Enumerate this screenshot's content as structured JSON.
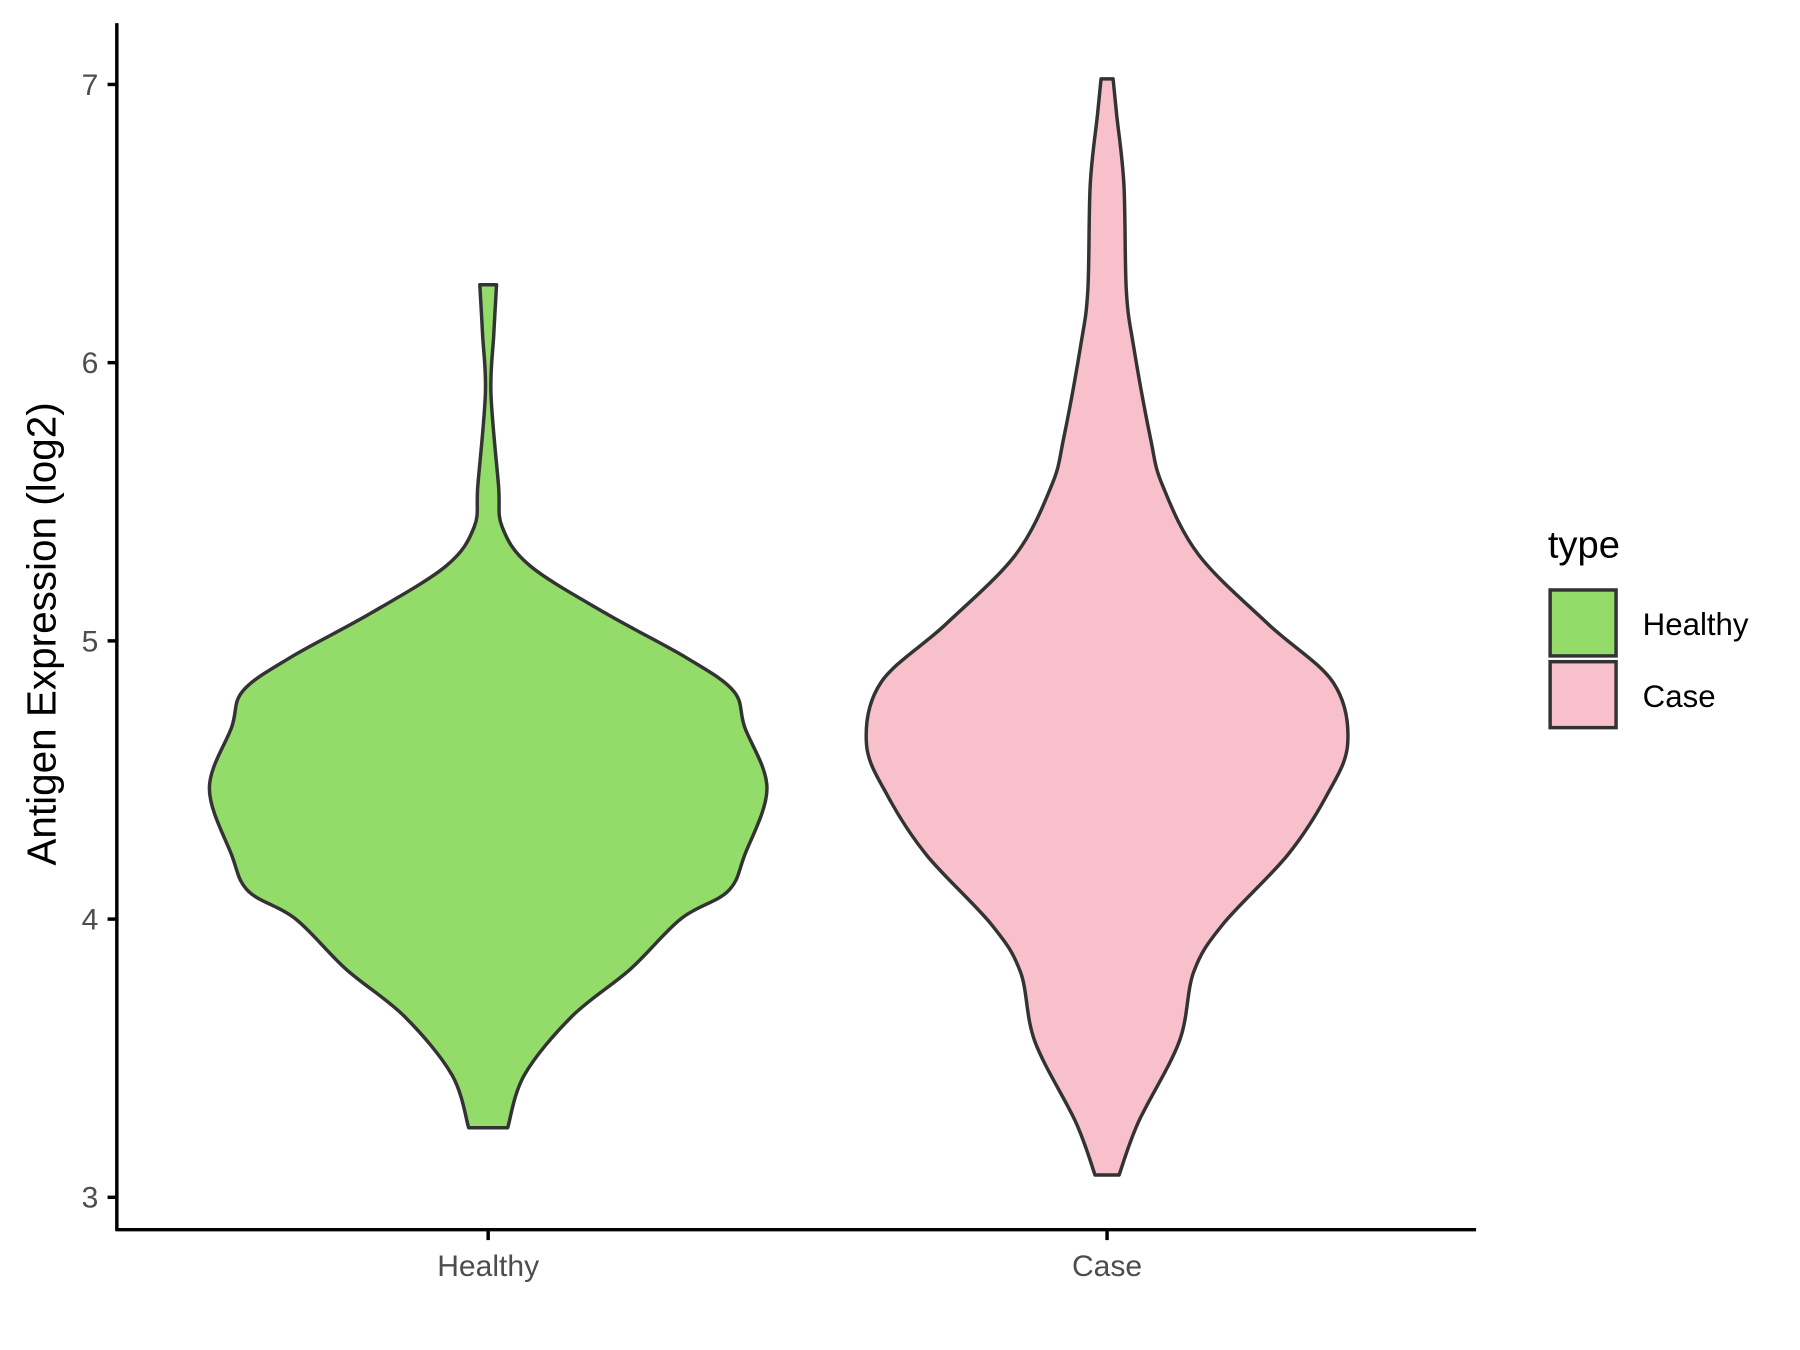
{
  "chart_data": {
    "type": "violin",
    "title": "",
    "xlabel": "",
    "ylabel": "Antigen Expression (log2)",
    "ylim": [
      2.88,
      7.22
    ],
    "yticks": [
      3,
      4,
      5,
      6,
      7
    ],
    "categories": [
      "Healthy",
      "Case"
    ],
    "grid": false,
    "legend": {
      "title": "type",
      "placement": "right",
      "entries": [
        {
          "label": "Healthy",
          "color": "#93DC6A"
        },
        {
          "label": "Case",
          "color": "#F8C0CB"
        }
      ]
    },
    "outline_color": "#333333",
    "violins": [
      {
        "category": "Healthy",
        "color": "#93DC6A",
        "range": [
          3.25,
          6.28
        ],
        "density_profile_note_units": "y in log2 expression, relative density 0-1",
        "profile": [
          [
            3.25,
            0.07
          ],
          [
            3.44,
            0.13
          ],
          [
            3.65,
            0.3
          ],
          [
            3.82,
            0.51
          ],
          [
            4.0,
            0.69
          ],
          [
            4.1,
            0.86
          ],
          [
            4.23,
            0.92
          ],
          [
            4.47,
            1.0
          ],
          [
            4.69,
            0.92
          ],
          [
            4.82,
            0.88
          ],
          [
            4.94,
            0.71
          ],
          [
            5.1,
            0.42
          ],
          [
            5.27,
            0.15
          ],
          [
            5.41,
            0.05
          ],
          [
            5.56,
            0.037
          ],
          [
            5.89,
            0.01
          ],
          [
            6.1,
            0.02
          ],
          [
            6.28,
            0.03
          ]
        ]
      },
      {
        "category": "Case",
        "color": "#F8C0CB",
        "range": [
          3.08,
          7.02
        ],
        "profile": [
          [
            3.08,
            0.05
          ],
          [
            3.27,
            0.13
          ],
          [
            3.56,
            0.3
          ],
          [
            3.81,
            0.36
          ],
          [
            3.98,
            0.48
          ],
          [
            4.23,
            0.75
          ],
          [
            4.44,
            0.91
          ],
          [
            4.63,
            1.0
          ],
          [
            4.85,
            0.94
          ],
          [
            5.06,
            0.67
          ],
          [
            5.31,
            0.38
          ],
          [
            5.56,
            0.23
          ],
          [
            5.73,
            0.18
          ],
          [
            6.06,
            0.11
          ],
          [
            6.26,
            0.08
          ],
          [
            6.64,
            0.07
          ],
          [
            6.89,
            0.04
          ],
          [
            7.02,
            0.025
          ]
        ]
      }
    ]
  }
}
